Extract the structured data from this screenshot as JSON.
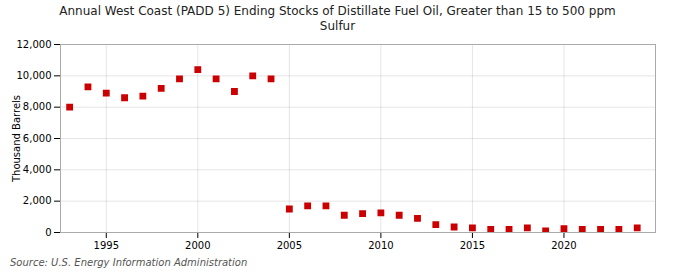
{
  "chart_data": {
    "type": "scatter",
    "title": "Annual West Coast (PADD 5) Ending Stocks of Distillate Fuel Oil, Greater than 15 to 500 ppm\nSulfur",
    "ylabel": "Thousand Barrels",
    "source": "Source: U.S. Energy Information Administration",
    "x": [
      1993,
      1994,
      1995,
      1996,
      1997,
      1998,
      1999,
      2000,
      2001,
      2002,
      2003,
      2004,
      2005,
      2006,
      2007,
      2008,
      2009,
      2010,
      2011,
      2012,
      2013,
      2014,
      2015,
      2016,
      2017,
      2018,
      2019,
      2020,
      2021,
      2022,
      2023,
      2024
    ],
    "values": [
      8000,
      9300,
      8900,
      8600,
      8700,
      9200,
      9800,
      10400,
      9800,
      9000,
      10000,
      9800,
      1500,
      1700,
      1700,
      1100,
      1200,
      1250,
      1100,
      900,
      500,
      350,
      300,
      200,
      200,
      300,
      100,
      250,
      200,
      200,
      200,
      300
    ],
    "color": "#cc0000",
    "marker": "square",
    "xlim": [
      1992.5,
      2025
    ],
    "xticks": [
      1995,
      2000,
      2005,
      2010,
      2015,
      2020
    ],
    "ylim": [
      0,
      12000
    ],
    "yticks": [
      0,
      {
        "value": 2000,
        "label": "2,000"
      },
      {
        "value": 4000,
        "label": "4,000"
      },
      {
        "value": 6000,
        "label": "6,000"
      },
      {
        "value": 8000,
        "label": "8,000"
      },
      {
        "value": 10000,
        "label": "10,000"
      },
      {
        "value": 12000,
        "label": "12,000"
      }
    ],
    "grid": true
  }
}
